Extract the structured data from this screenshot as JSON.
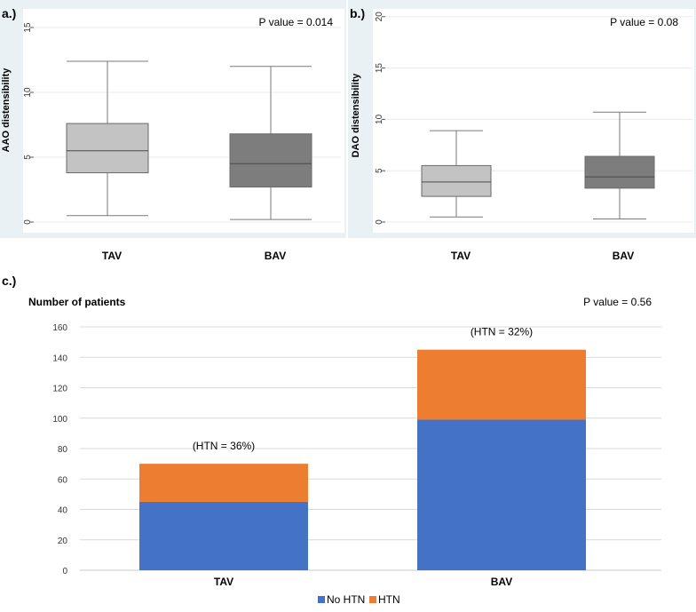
{
  "panels": {
    "a": {
      "label": "a.)"
    },
    "b": {
      "label": "b.)"
    },
    "c": {
      "label": "c.)"
    }
  },
  "colors": {
    "tav_box": "#c3c3c3",
    "bav_box": "#7d7d7d",
    "no_htn": "#4472c4",
    "htn": "#ed7d31",
    "panel_bg": "#e9f1f5"
  },
  "chart_data": [
    {
      "id": "a",
      "type": "box",
      "title": "",
      "ylabel": "AAO distensibility",
      "p_value": "P value = 0.014",
      "ylim": [
        0,
        16
      ],
      "yticks": [
        "0",
        "5",
        "10",
        "15"
      ],
      "categories": [
        "TAV",
        "BAV"
      ],
      "boxes": [
        {
          "name": "TAV",
          "min": 0.5,
          "q1": 3.8,
          "median": 5.5,
          "q3": 7.6,
          "max": 12.4
        },
        {
          "name": "BAV",
          "min": 0.2,
          "q1": 2.7,
          "median": 4.5,
          "q3": 6.8,
          "max": 12.0
        }
      ]
    },
    {
      "id": "b",
      "type": "box",
      "title": "",
      "ylabel": "DAO distensibility",
      "p_value": "P value = 0.08",
      "ylim": [
        0,
        21
      ],
      "yticks": [
        "0",
        "5",
        "10",
        "15",
        "20"
      ],
      "categories": [
        "TAV",
        "BAV"
      ],
      "boxes": [
        {
          "name": "TAV",
          "min": 0.5,
          "q1": 2.5,
          "median": 3.9,
          "q3": 5.5,
          "max": 8.9
        },
        {
          "name": "BAV",
          "min": 0.3,
          "q1": 3.3,
          "median": 4.4,
          "q3": 6.4,
          "max": 10.7
        }
      ]
    },
    {
      "id": "c",
      "type": "bar",
      "stacked": true,
      "title": "Number of patients",
      "p_value": "P value = 0.56",
      "ylim": [
        0,
        160
      ],
      "yticks": [
        "0",
        "20",
        "40",
        "60",
        "80",
        "100",
        "120",
        "140",
        "160"
      ],
      "categories": [
        "TAV",
        "BAV"
      ],
      "series": [
        {
          "name": "No HTN",
          "values": [
            45,
            99
          ]
        },
        {
          "name": "HTN",
          "values": [
            25,
            46
          ]
        }
      ],
      "annotations": [
        "(HTN = 36%)",
        "(HTN = 32%)"
      ],
      "legend": "bottom"
    }
  ]
}
